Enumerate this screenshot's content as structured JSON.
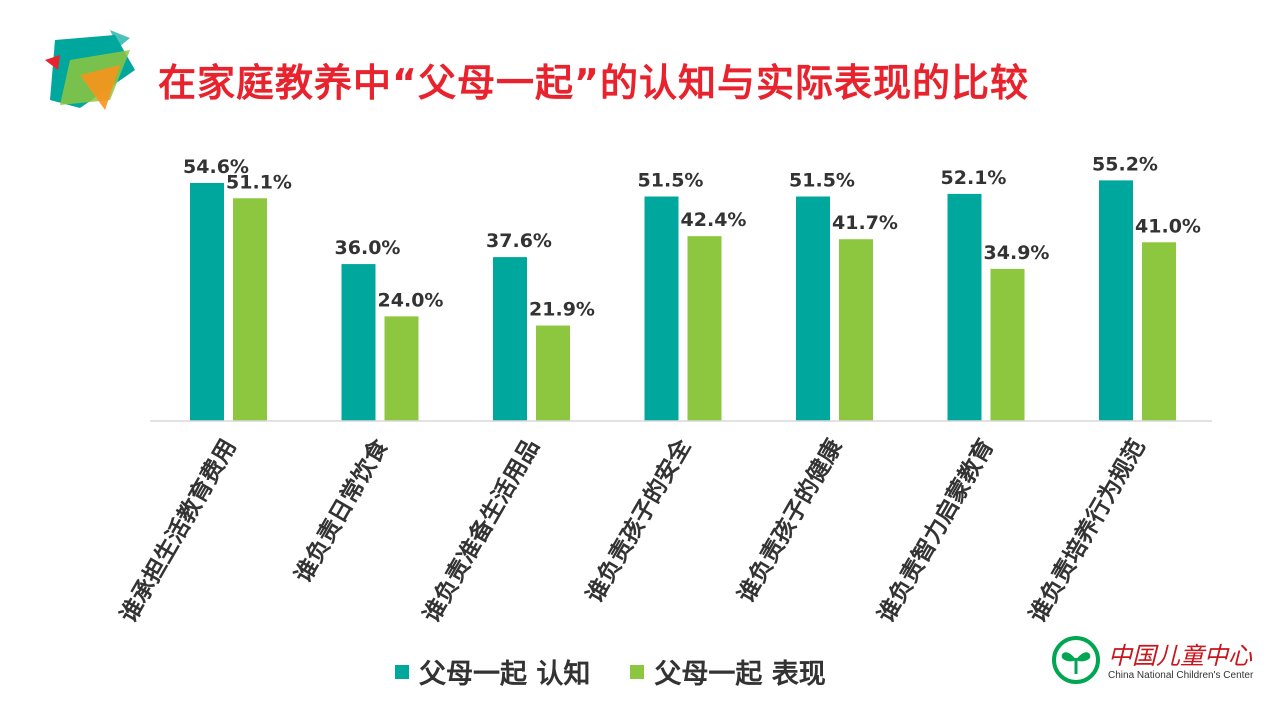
{
  "title": "在家庭教养中“父母一起”的认知与实际表现的比较",
  "colors": {
    "series1": "#00a79d",
    "series2": "#8dc63f",
    "title": "#e8232d",
    "org": "#c8161d"
  },
  "chart_data": {
    "type": "bar",
    "categories": [
      "谁承担生活教育费用",
      "谁负责日常饮食",
      "谁负责准备生活用品",
      "谁负责孩子的安全",
      "谁负责孩子的健康",
      "谁负责智力启蒙教育",
      "谁负责培养行为规范"
    ],
    "series": [
      {
        "name": "父母一起 认知",
        "values": [
          54.6,
          36.0,
          37.6,
          51.5,
          51.5,
          52.1,
          55.2
        ],
        "labels": [
          "54.6%",
          "36.0%",
          "37.6%",
          "51.5%",
          "51.5%",
          "52.1%",
          "55.2%"
        ]
      },
      {
        "name": "父母一起 表现",
        "values": [
          51.1,
          24.0,
          21.9,
          42.4,
          41.7,
          34.9,
          41.0
        ],
        "labels": [
          "51.1%",
          "24.0%",
          "21.9%",
          "42.4%",
          "41.7%",
          "34.9%",
          "41.0%"
        ]
      }
    ],
    "ylim": [
      0,
      60
    ],
    "legend_position": "bottom"
  },
  "legend": {
    "series1": "父母一起 认知",
    "series2": "父母一起 表现"
  },
  "org": {
    "name_cn": "中国儿童中心",
    "name_en": "China National Children's Center"
  }
}
